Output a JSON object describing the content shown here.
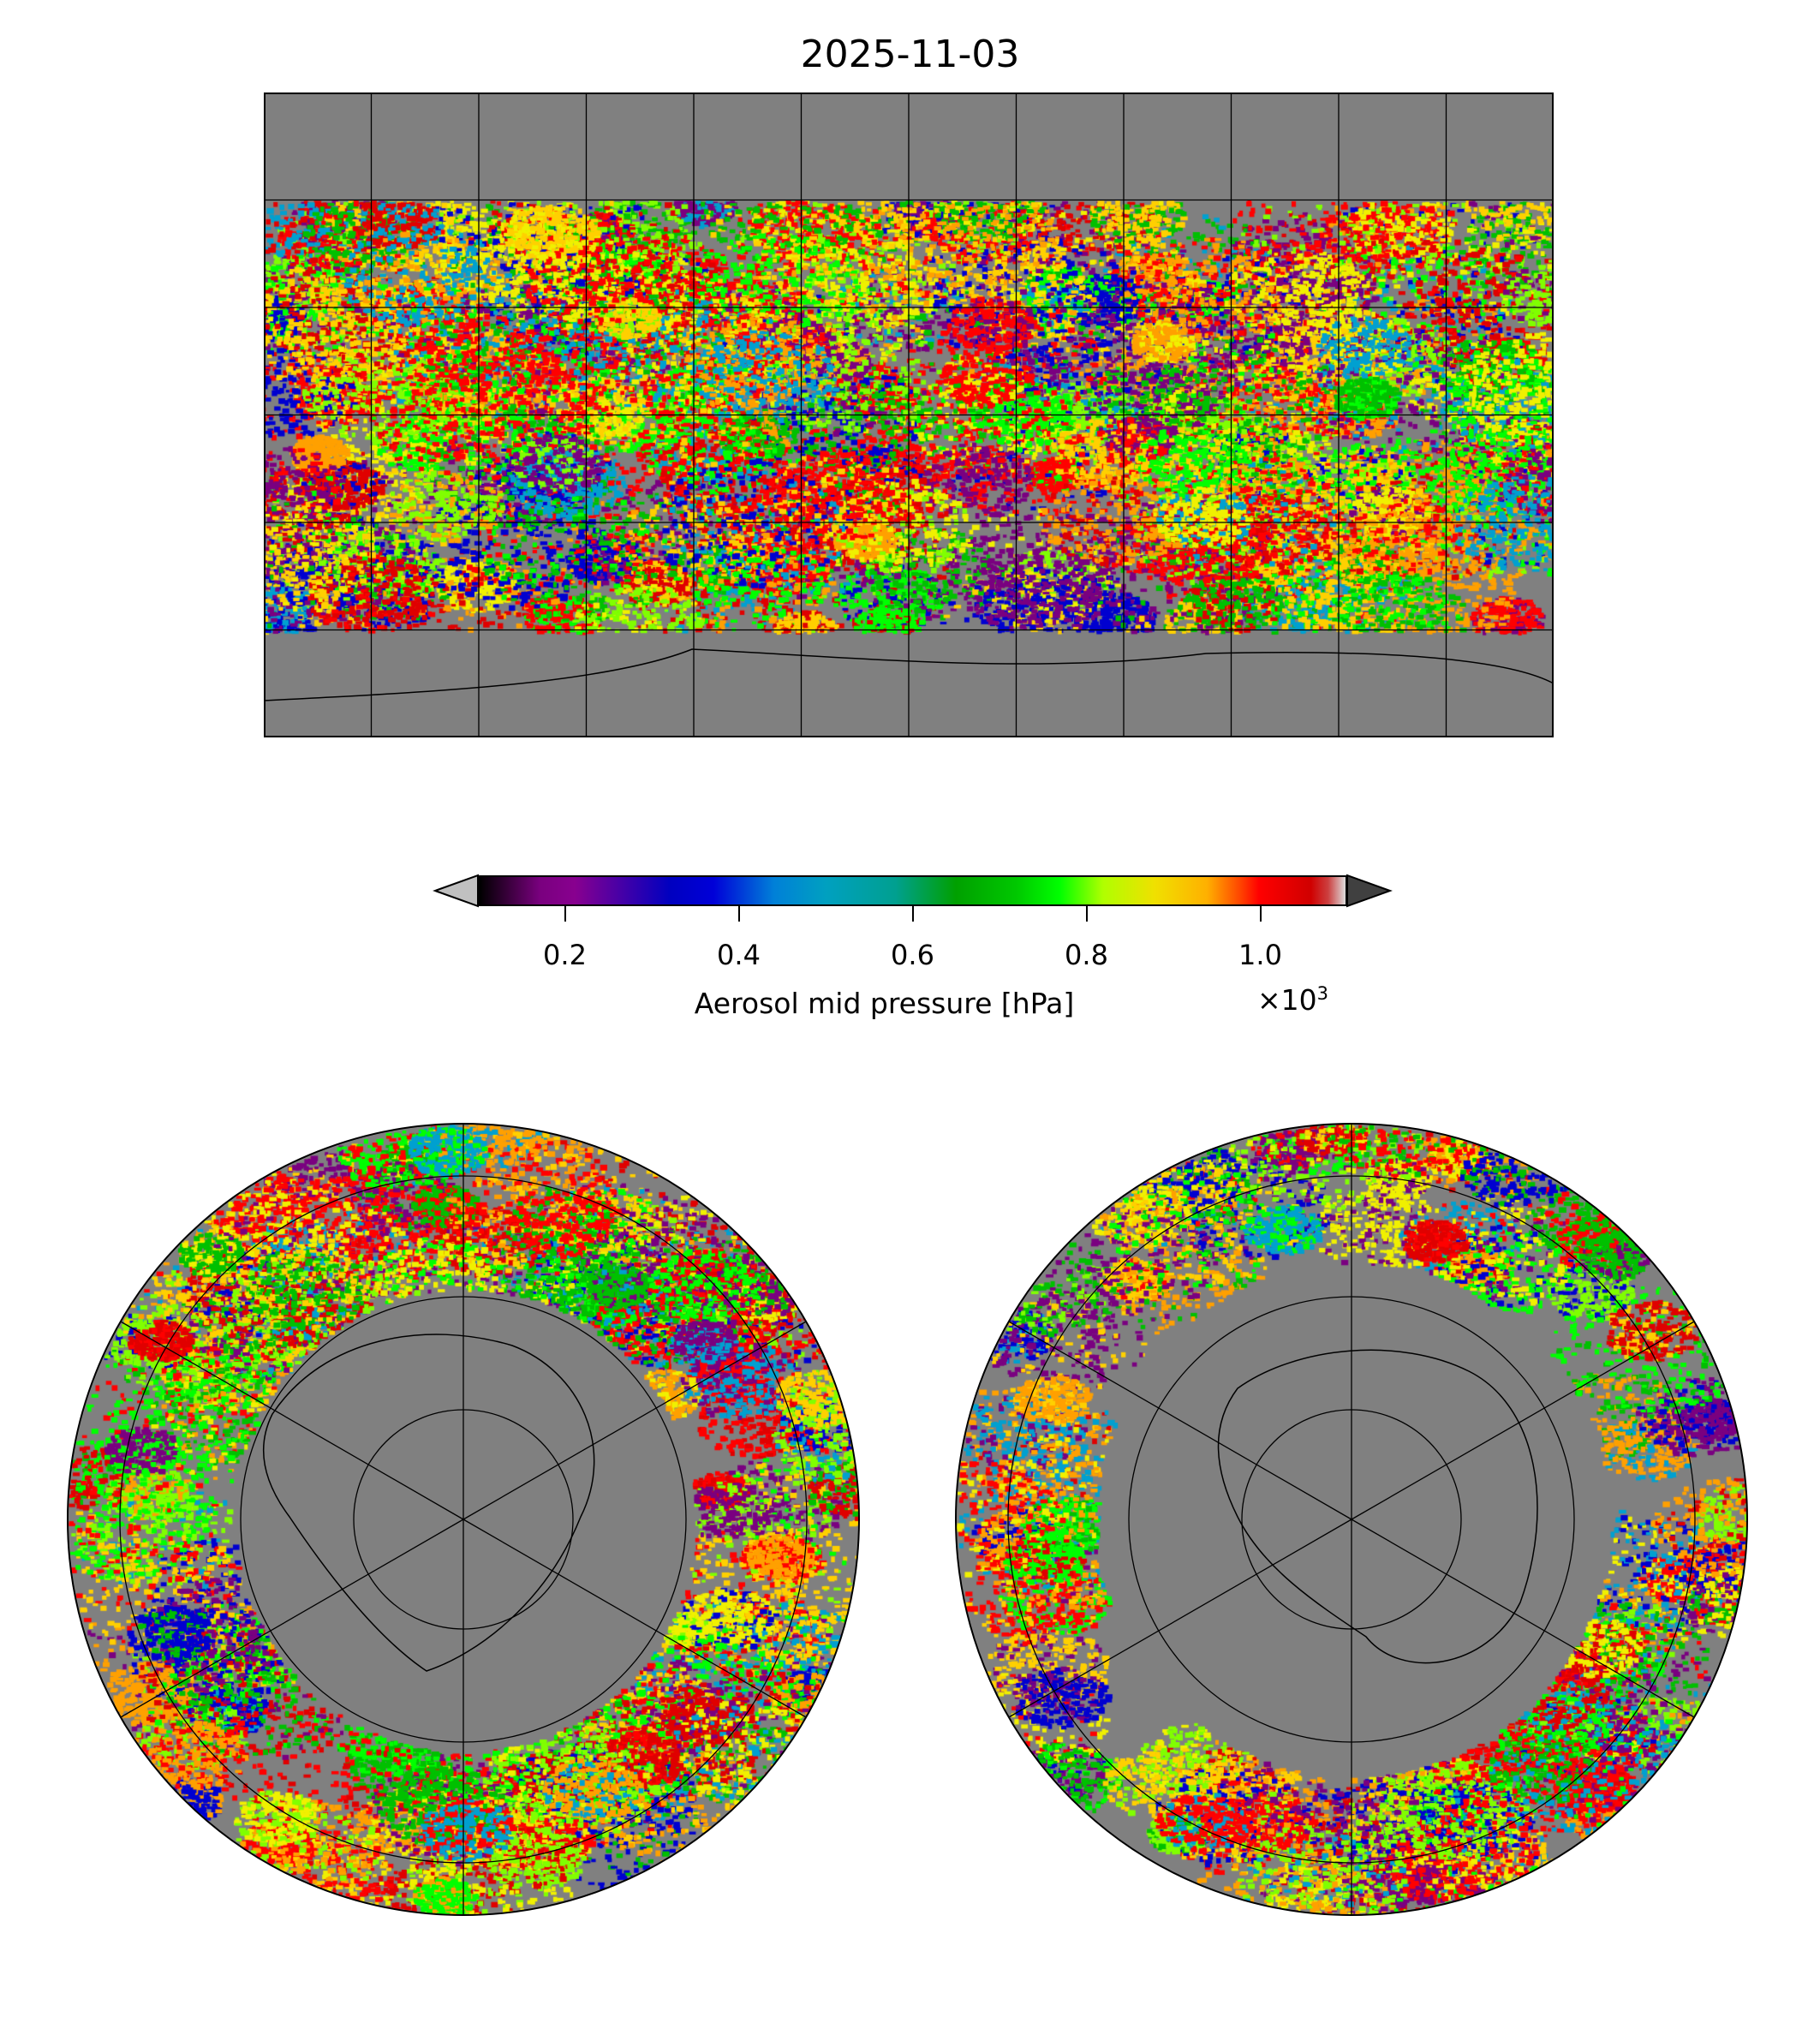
{
  "chart_data": {
    "type": "heatmap",
    "title": "2025-11-03",
    "panels": [
      "global-plate-carree",
      "north-polar-stereographic",
      "south-polar-stereographic"
    ],
    "colorbar": {
      "label": "Aerosol mid pressure [hPa]",
      "multiplier": "×10",
      "multiplier_exp": "3",
      "range": [
        0.1,
        1.1
      ],
      "extend": "both",
      "ticks": [
        0.2,
        0.4,
        0.6,
        0.8,
        1.0
      ],
      "tick_labels": [
        "0.2",
        "0.4",
        "0.6",
        "0.8",
        "1.0"
      ],
      "under_color": "#c0c0c0",
      "over_color": "#404040"
    },
    "background_color": "#808080",
    "gridlines": {
      "lon_step_deg": 30,
      "lat_step_deg": 30
    }
  }
}
